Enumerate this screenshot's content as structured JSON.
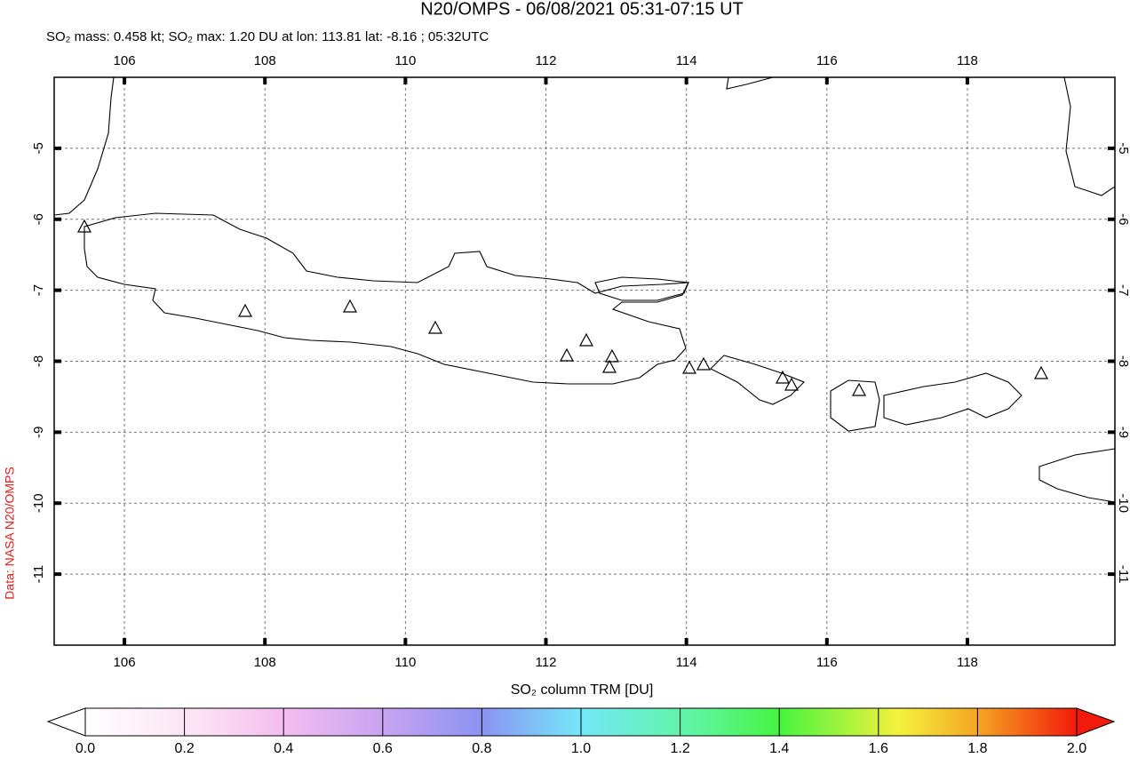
{
  "title": "N20/OMPS - 06/08/2021 05:31-07:15 UT",
  "subtitle": "SO₂ mass: 0.458 kt; SO₂ max: 1.20 DU at lon: 113.81 lat: -8.16 ; 05:32UTC",
  "credit": "Data: NASA N20/OMPS",
  "chart_data": {
    "type": "map",
    "xlim": [
      105,
      120.1
    ],
    "ylim": [
      -12,
      -4
    ],
    "xticks": [
      106,
      108,
      110,
      112,
      114,
      116,
      118
    ],
    "yticks": [
      -5,
      -6,
      -7,
      -8,
      -9,
      -10,
      -11
    ],
    "grid": true,
    "colorbar": {
      "label": "SO₂ column TRM [DU]",
      "lim": [
        0,
        2
      ],
      "ticks": [
        {
          "value": 0,
          "label": "0.0"
        },
        0.2,
        0.4,
        0.6,
        0.8,
        {
          "value": 1,
          "label": "1.0"
        },
        1.2,
        1.4,
        1.6,
        1.8,
        {
          "value": 2,
          "label": "2.0"
        }
      ]
    }
  }
}
